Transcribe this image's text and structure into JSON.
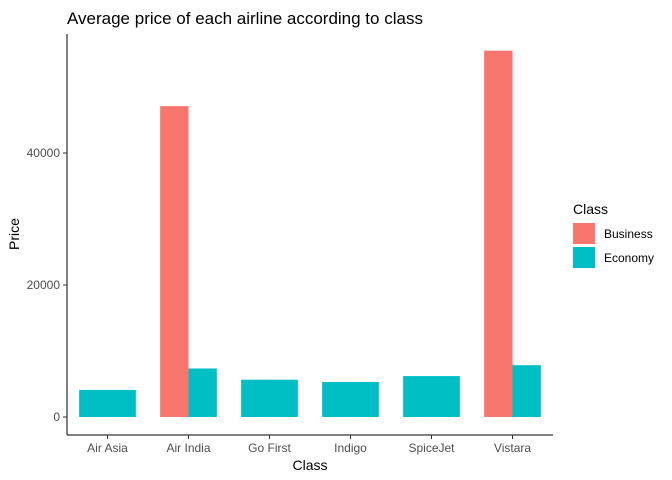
{
  "chart_data": {
    "type": "bar",
    "title": "Average price of each airline according to class",
    "xlabel": "Class",
    "ylabel": "Price",
    "categories": [
      "Air Asia",
      "Air India",
      "Go First",
      "Indigo",
      "SpiceJet",
      "Vistara"
    ],
    "series": [
      {
        "name": "Business",
        "color": "#F8766D",
        "values": [
          null,
          47100,
          null,
          null,
          null,
          55500
        ]
      },
      {
        "name": "Economy",
        "color": "#00BFC4",
        "values": [
          4100,
          7350,
          5650,
          5300,
          6200,
          7850
        ]
      }
    ],
    "ylim": [
      0,
      57000
    ],
    "yticks": [
      0,
      20000,
      40000
    ],
    "yticks_labels": [
      "0",
      "20000",
      "40000"
    ],
    "grid": false,
    "legend": {
      "title": "Class",
      "position": "right",
      "entries": [
        "Business",
        "Economy"
      ]
    }
  }
}
